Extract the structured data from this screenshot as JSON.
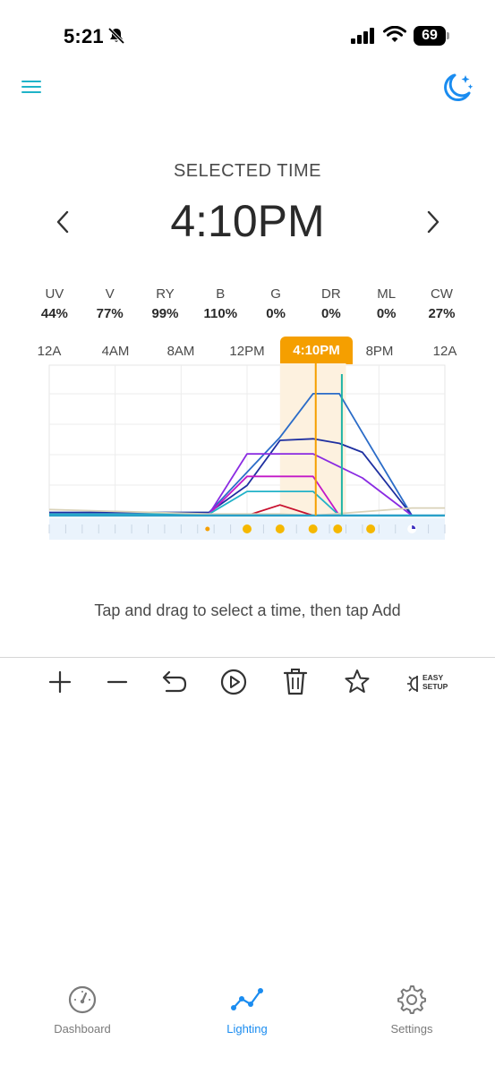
{
  "status_bar": {
    "time": "5:21",
    "battery": "69"
  },
  "header": {
    "menu_icon": "menu-icon",
    "moon_icon": "moon-stars-icon"
  },
  "selected": {
    "label": "SELECTED TIME",
    "time": "4:10PM"
  },
  "channels": [
    {
      "name": "UV",
      "value": "44%"
    },
    {
      "name": "V",
      "value": "77%"
    },
    {
      "name": "RY",
      "value": "99%"
    },
    {
      "name": "B",
      "value": "110%"
    },
    {
      "name": "G",
      "value": "0%"
    },
    {
      "name": "DR",
      "value": "0%"
    },
    {
      "name": "ML",
      "value": "0%"
    },
    {
      "name": "CW",
      "value": "27%"
    }
  ],
  "time_axis": [
    "12A",
    "4AM",
    "8AM",
    "12PM",
    "4:10PM",
    "8PM",
    "12A"
  ],
  "chart_data": {
    "type": "line",
    "x_unit": "hour of day",
    "xlim": [
      0,
      24
    ],
    "selected_hour": 16.1667,
    "second_marker_hour": 17.75,
    "highlight_range": [
      14,
      18
    ],
    "colors": {
      "accent": "#f59f00",
      "marker": "#1fb3a6",
      "highlight": "#fdf1df"
    },
    "series": [
      {
        "color": "#2b6cc8",
        "x": [
          0,
          9.7,
          14,
          16,
          17.6,
          19,
          22
        ],
        "y": [
          0.02,
          0.02,
          0.52,
          0.81,
          0.81,
          0.55,
          0
        ]
      },
      {
        "color": "#1e2fa0",
        "x": [
          0,
          9.7,
          12,
          14,
          16,
          17.6,
          19,
          22
        ],
        "y": [
          0.02,
          0.02,
          0.2,
          0.5,
          0.51,
          0.48,
          0.42,
          0
        ]
      },
      {
        "color": "#8a2be2",
        "x": [
          0,
          9.7,
          12,
          16,
          19,
          22
        ],
        "y": [
          0.01,
          0.01,
          0.41,
          0.41,
          0.25,
          0
        ]
      },
      {
        "color": "#c218c8",
        "x": [
          0,
          9.7,
          12,
          16,
          17.6,
          22
        ],
        "y": [
          0.01,
          0.01,
          0.26,
          0.26,
          0,
          0
        ]
      },
      {
        "color": "#22b2c8",
        "x": [
          0,
          9.7,
          12,
          16,
          17.6,
          22
        ],
        "y": [
          0.01,
          0.01,
          0.16,
          0.16,
          0,
          0
        ]
      },
      {
        "color": "#c8102e",
        "x": [
          0,
          12,
          14,
          16,
          22
        ],
        "y": [
          0,
          0,
          0.07,
          0,
          0
        ]
      },
      {
        "color": "#d9d2b8",
        "x": [
          0,
          9.7,
          14,
          16,
          22,
          24
        ],
        "y": [
          0.04,
          0.01,
          0.01,
          0.0,
          0.05,
          0.05
        ]
      },
      {
        "color": "#2aa0c8",
        "x": [
          0,
          24
        ],
        "y": [
          0.0,
          0.0
        ]
      }
    ],
    "timeline_points": [
      {
        "x": 9.6,
        "kind": "small"
      },
      {
        "x": 12.0,
        "kind": "dot"
      },
      {
        "x": 14.0,
        "kind": "dot"
      },
      {
        "x": 16.0,
        "kind": "dot"
      },
      {
        "x": 17.5,
        "kind": "dot"
      },
      {
        "x": 19.5,
        "kind": "dot"
      },
      {
        "x": 22.0,
        "kind": "moon"
      }
    ]
  },
  "hint": "Tap and drag to select a time, then tap Add",
  "toolbar": {
    "add_icon": "plus-icon",
    "remove_icon": "minus-icon",
    "undo_icon": "undo-icon",
    "play_icon": "play-icon",
    "delete_icon": "trash-icon",
    "favorite_icon": "star-icon",
    "easy_setup_line1": "EASY",
    "easy_setup_line2": "SETUP"
  },
  "tabbar": {
    "tabs": [
      {
        "label": "Dashboard",
        "icon": "gauge-icon",
        "active": false
      },
      {
        "label": "Lighting",
        "icon": "graph-icon",
        "active": true
      },
      {
        "label": "Settings",
        "icon": "gear-icon",
        "active": false
      }
    ],
    "active_color": "#1a8cf0",
    "inactive_color": "#7a7a7a"
  }
}
